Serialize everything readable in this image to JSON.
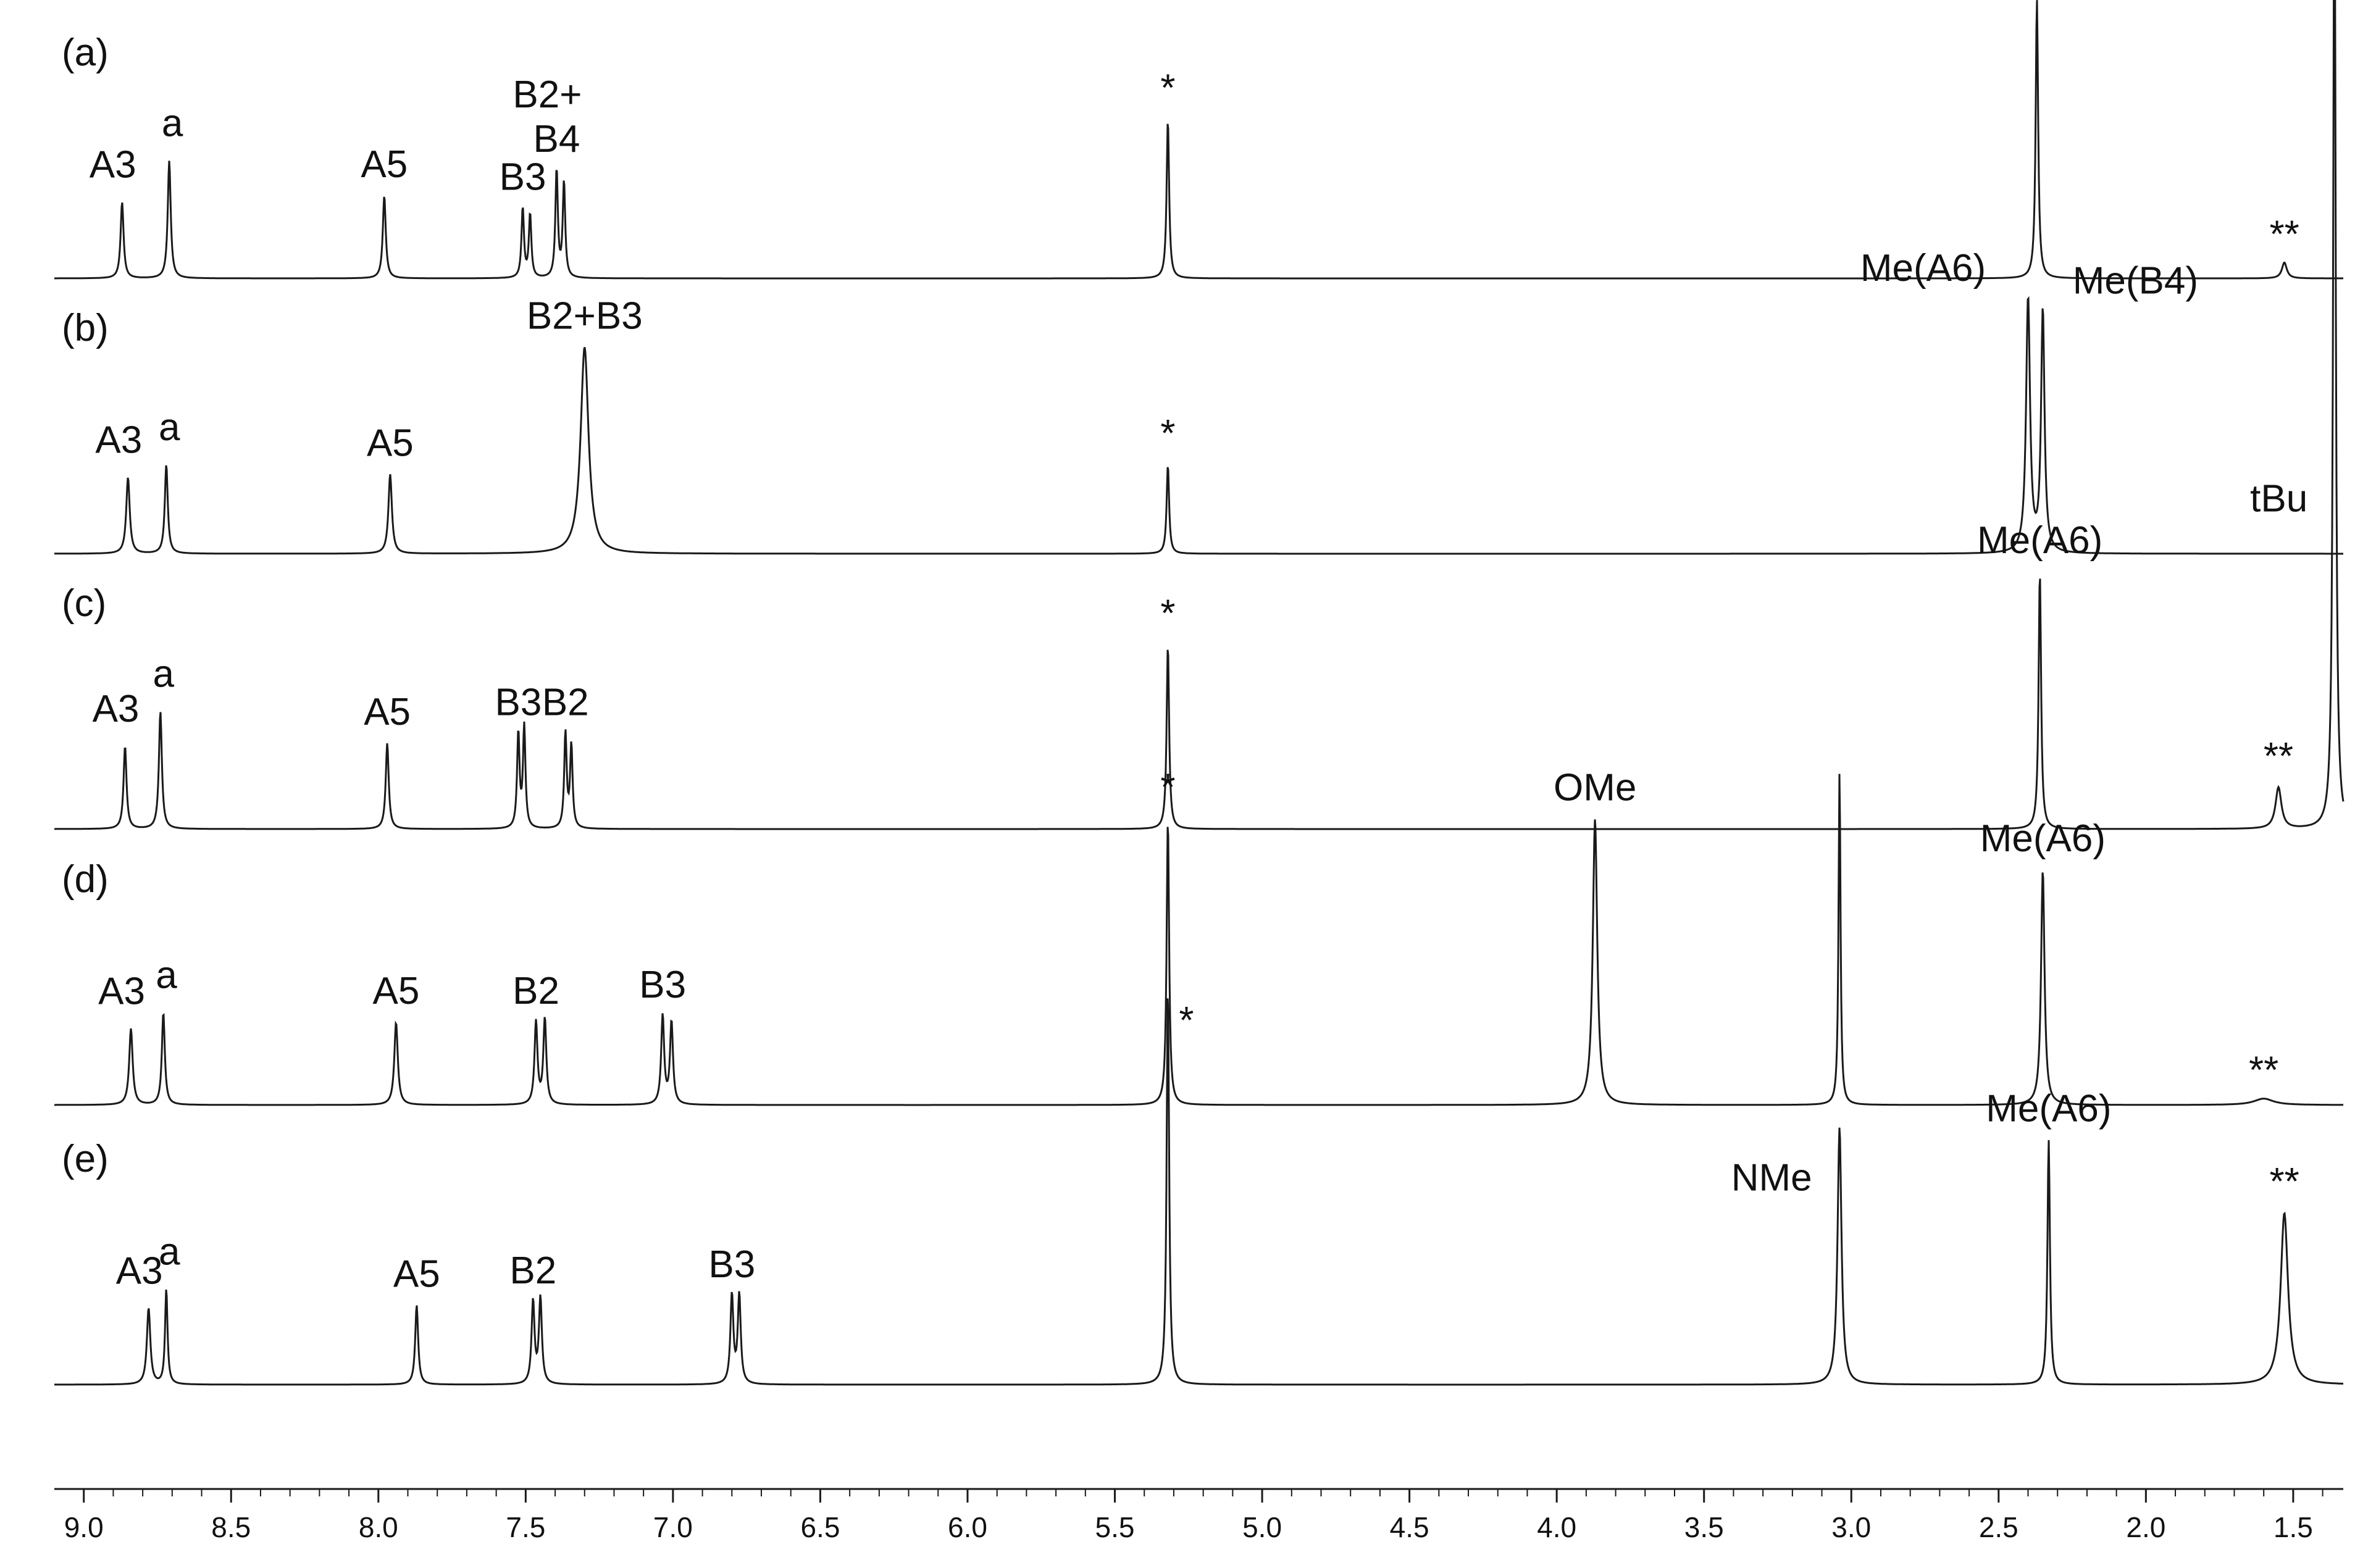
{
  "chart_data": {
    "type": "line",
    "xlabel": "",
    "ylabel": "",
    "xlim": [
      9.1,
      1.33
    ],
    "x_ticks": [
      "9.0",
      "8.5",
      "8.0",
      "7.5",
      "7.0",
      "6.5",
      "6.0",
      "5.5",
      "5.0",
      "4.5",
      "4.0",
      "3.5",
      "3.0",
      "2.5",
      "2.0",
      "1.5"
    ],
    "grid": false,
    "series": [
      {
        "panel": "(a)",
        "peaks": [
          {
            "ppm": 8.87,
            "h": 0.24,
            "w": 0.006,
            "label": "A3"
          },
          {
            "ppm": 8.71,
            "h": 0.37,
            "w": 0.006,
            "label": "a"
          },
          {
            "ppm": 7.98,
            "h": 0.26,
            "w": 0.006,
            "label": "A5"
          },
          {
            "ppm": 7.51,
            "h": 0.22,
            "w": 0.005,
            "label": "B3"
          },
          {
            "ppm": 7.485,
            "h": 0.2,
            "w": 0.005
          },
          {
            "ppm": 7.395,
            "h": 0.34,
            "w": 0.005,
            "label": "B2+\nB4"
          },
          {
            "ppm": 7.37,
            "h": 0.3,
            "w": 0.005
          },
          {
            "ppm": 5.32,
            "h": 0.5,
            "w": 0.005,
            "label": "*"
          },
          {
            "ppm": 2.37,
            "h": 0.88,
            "w": 0.005,
            "label": "Me(A6)"
          },
          {
            "ppm": 1.53,
            "h": 0.05,
            "w": 0.01,
            "label": "**"
          }
        ]
      },
      {
        "panel": "(b)",
        "peaks": [
          {
            "ppm": 8.85,
            "h": 0.24,
            "w": 0.007,
            "label": "A3"
          },
          {
            "ppm": 8.72,
            "h": 0.28,
            "w": 0.006,
            "label": "a"
          },
          {
            "ppm": 7.96,
            "h": 0.25,
            "w": 0.007,
            "label": "A5"
          },
          {
            "ppm": 7.3,
            "h": 0.65,
            "w": 0.016,
            "label": "B2+B3"
          },
          {
            "ppm": 5.32,
            "h": 0.28,
            "w": 0.005,
            "label": "*"
          },
          {
            "ppm": 2.4,
            "h": 0.8,
            "w": 0.008,
            "label": "Me(A6)"
          },
          {
            "ppm": 2.35,
            "h": 0.76,
            "w": 0.007,
            "label": "Me(B4)"
          }
        ]
      },
      {
        "panel": "(c)",
        "peaks": [
          {
            "ppm": 8.86,
            "h": 0.26,
            "w": 0.006,
            "label": "A3"
          },
          {
            "ppm": 8.74,
            "h": 0.37,
            "w": 0.006,
            "label": "a"
          },
          {
            "ppm": 7.97,
            "h": 0.27,
            "w": 0.006,
            "label": "A5"
          },
          {
            "ppm": 7.525,
            "h": 0.3,
            "w": 0.005,
            "label": "B3"
          },
          {
            "ppm": 7.505,
            "h": 0.32,
            "w": 0.005
          },
          {
            "ppm": 7.365,
            "h": 0.3,
            "w": 0.005,
            "label": "B2"
          },
          {
            "ppm": 7.345,
            "h": 0.26,
            "w": 0.005
          },
          {
            "ppm": 5.32,
            "h": 0.58,
            "w": 0.005,
            "label": "*"
          },
          {
            "ppm": 2.36,
            "h": 0.81,
            "w": 0.005,
            "label": "Me(A6)"
          },
          {
            "ppm": 1.55,
            "h": 0.13,
            "w": 0.012,
            "label": "**"
          },
          {
            "ppm": 1.36,
            "h": 3.19,
            "w": 0.005,
            "label": "tBu"
          }
        ]
      },
      {
        "panel": "(d)",
        "peaks": [
          {
            "ppm": 8.84,
            "h": 0.24,
            "w": 0.007,
            "label": "A3"
          },
          {
            "ppm": 8.73,
            "h": 0.29,
            "w": 0.006,
            "label": "a"
          },
          {
            "ppm": 7.94,
            "h": 0.26,
            "w": 0.007,
            "label": "A5"
          },
          {
            "ppm": 7.465,
            "h": 0.26,
            "w": 0.006,
            "label": "B2"
          },
          {
            "ppm": 7.435,
            "h": 0.27,
            "w": 0.006
          },
          {
            "ppm": 7.035,
            "h": 0.28,
            "w": 0.006,
            "label": "B3"
          },
          {
            "ppm": 7.005,
            "h": 0.26,
            "w": 0.006
          },
          {
            "ppm": 5.32,
            "h": 0.9,
            "w": 0.005,
            "label": "*"
          },
          {
            "ppm": 3.87,
            "h": 0.9,
            "w": 0.009,
            "label": "OMe"
          },
          {
            "ppm": 3.04,
            "h": 1.05,
            "w": 0.004
          },
          {
            "ppm": 2.35,
            "h": 0.74,
            "w": 0.007,
            "label": "Me(A6)"
          },
          {
            "ppm": 1.6,
            "h": 0.02,
            "w": 0.04,
            "label": "**"
          }
        ]
      },
      {
        "panel": "(e)",
        "peaks": [
          {
            "ppm": 8.78,
            "h": 0.24,
            "w": 0.007,
            "label": "A3"
          },
          {
            "ppm": 8.72,
            "h": 0.3,
            "w": 0.005,
            "label": "a"
          },
          {
            "ppm": 7.87,
            "h": 0.25,
            "w": 0.006,
            "label": "A5"
          },
          {
            "ppm": 7.475,
            "h": 0.26,
            "w": 0.006,
            "label": "B2"
          },
          {
            "ppm": 7.45,
            "h": 0.27,
            "w": 0.006
          },
          {
            "ppm": 6.8,
            "h": 0.28,
            "w": 0.006,
            "label": "B3"
          },
          {
            "ppm": 6.775,
            "h": 0.28,
            "w": 0.006
          },
          {
            "ppm": 5.32,
            "h": 1.25,
            "w": 0.005,
            "label": "*"
          },
          {
            "ppm": 3.04,
            "h": 0.81,
            "w": 0.008,
            "label": "NMe"
          },
          {
            "ppm": 2.33,
            "h": 0.77,
            "w": 0.005,
            "label": "Me(A6)"
          },
          {
            "ppm": 1.53,
            "h": 0.54,
            "w": 0.015,
            "label": "**"
          }
        ]
      }
    ]
  }
}
